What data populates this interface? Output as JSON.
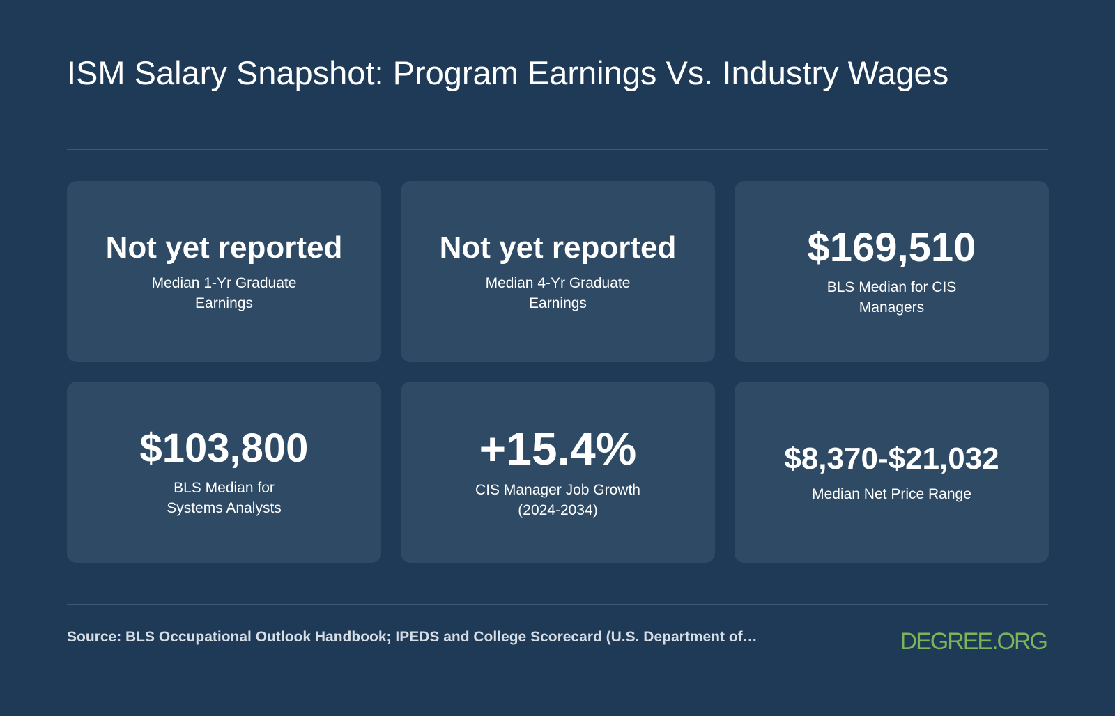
{
  "title": "ISM Salary Snapshot: Program Earnings Vs. Industry Wages",
  "cards": [
    {
      "value": "Not yet reported",
      "label": "Median 1-Yr Graduate Earnings"
    },
    {
      "value": "Not yet reported",
      "label": "Median 4-Yr Graduate Earnings"
    },
    {
      "value": "$169,510",
      "label": "BLS Median for CIS Managers"
    },
    {
      "value": "$103,800",
      "label": "BLS Median for Systems Analysts"
    },
    {
      "value": "+15.4%",
      "label": "CIS Manager Job Growth (2024-2034)"
    },
    {
      "value": "$8,370-$21,032",
      "label": "Median Net Price Range"
    }
  ],
  "footer": {
    "source": "Source: BLS Occupational Outlook Handbook; IPEDS and College Scorecard (U.S. Department of…",
    "logo": "DEGREE.ORG"
  },
  "colors": {
    "background": "#1e3a56",
    "card": "#2e4a64",
    "logo": "#7ab55c"
  }
}
